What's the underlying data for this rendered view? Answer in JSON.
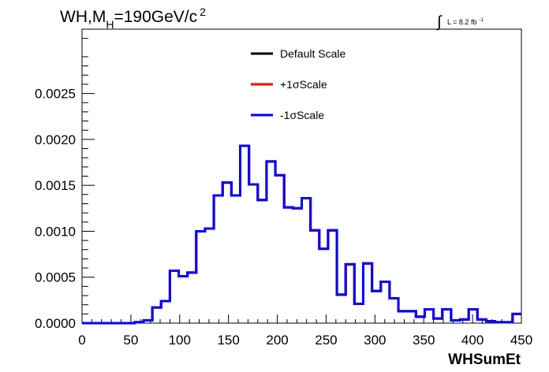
{
  "chart_data": {
    "type": "line",
    "title_main": "WH,M",
    "title_sub": "H",
    "title_rest": "=190GeV/c",
    "title_sup": "2",
    "lumi_symbol": "∫",
    "lumi_label": "L = 8.2 fb",
    "lumi_sup": "-1",
    "xlabel": "WHSumEt",
    "ylabel": "",
    "xlim": [
      0,
      450
    ],
    "ylim": [
      0,
      0.0032
    ],
    "xticks": [
      "0",
      "50",
      "100",
      "150",
      "200",
      "250",
      "300",
      "350",
      "400",
      "450"
    ],
    "yticks": [
      "0.0000",
      "0.0005",
      "0.0010",
      "0.0015",
      "0.0020",
      "0.0025"
    ],
    "bin_width": 9,
    "x": [
      0,
      9,
      18,
      27,
      36,
      45,
      54,
      63,
      72,
      81,
      90,
      99,
      108,
      117,
      126,
      135,
      144,
      153,
      162,
      171,
      180,
      189,
      198,
      207,
      216,
      225,
      234,
      243,
      252,
      261,
      270,
      279,
      288,
      297,
      306,
      315,
      324,
      333,
      342,
      351,
      360,
      369,
      378,
      387,
      396,
      405,
      414,
      423,
      432,
      441
    ],
    "series": [
      {
        "name": "Default Scale",
        "color": "#000000",
        "values": [
          0,
          0,
          0,
          0,
          0,
          0,
          1e-05,
          3e-05,
          0.00017,
          0.00024,
          0.00057,
          0.00051,
          0.00055,
          0.001,
          0.00103,
          0.00139,
          0.00153,
          0.00139,
          0.00193,
          0.00151,
          0.00134,
          0.00176,
          0.00161,
          0.00126,
          0.00125,
          0.00136,
          0.00101,
          0.00081,
          0.00101,
          0.00031,
          0.00064,
          0.00021,
          0.00065,
          0.00035,
          0.00045,
          0.00027,
          0.00013,
          0.00013,
          7e-05,
          0.00015,
          5e-05,
          0.00015,
          3e-05,
          4e-05,
          0.00015,
          4e-05,
          2e-05,
          1e-05,
          1e-05,
          0.0001
        ]
      },
      {
        "name": "+1σScale",
        "color": "#ff0000",
        "values": [
          0,
          0,
          0,
          0,
          0,
          0,
          1e-05,
          3e-05,
          0.00017,
          0.00024,
          0.00057,
          0.00051,
          0.00055,
          0.001,
          0.00103,
          0.00139,
          0.00153,
          0.00139,
          0.00193,
          0.00151,
          0.00134,
          0.00176,
          0.00161,
          0.00126,
          0.00125,
          0.00136,
          0.00101,
          0.00081,
          0.00101,
          0.00031,
          0.00064,
          0.00021,
          0.00065,
          0.00035,
          0.00045,
          0.00027,
          0.00013,
          0.00013,
          7e-05,
          0.00015,
          5e-05,
          0.00015,
          3e-05,
          4e-05,
          0.00015,
          4e-05,
          2e-05,
          1e-05,
          1e-05,
          0.0001
        ]
      },
      {
        "name": "-1σScale",
        "color": "#0000ff",
        "values": [
          0,
          0,
          0,
          0,
          0,
          0,
          1e-05,
          3e-05,
          0.00017,
          0.00024,
          0.00057,
          0.00051,
          0.00055,
          0.001,
          0.00103,
          0.00139,
          0.00153,
          0.00139,
          0.00193,
          0.00151,
          0.00134,
          0.00176,
          0.00161,
          0.00126,
          0.00125,
          0.00136,
          0.00101,
          0.00081,
          0.00101,
          0.00031,
          0.00064,
          0.00021,
          0.00065,
          0.00035,
          0.00045,
          0.00027,
          0.00013,
          0.00013,
          7e-05,
          0.00015,
          5e-05,
          0.00015,
          3e-05,
          4e-05,
          0.00015,
          4e-05,
          2e-05,
          1e-05,
          1e-05,
          0.0001
        ]
      }
    ],
    "legend_position": "top-center",
    "grid": false
  }
}
